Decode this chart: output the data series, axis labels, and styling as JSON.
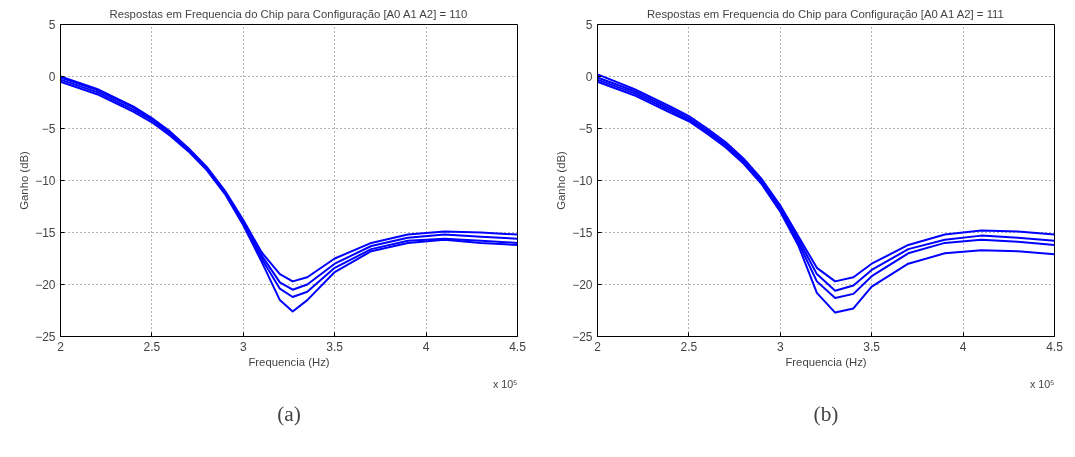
{
  "chart_data": [
    {
      "type": "line",
      "title": "Respostas em Frequencia do Chip para Configuração [A0 A1 A2] = 110",
      "xlabel": "Frequencia (Hz)",
      "ylabel": "Ganho (dB)",
      "x": [
        2.0,
        2.2,
        2.4,
        2.5,
        2.6,
        2.7,
        2.8,
        2.9,
        3.0,
        3.1,
        3.2,
        3.27,
        3.35,
        3.5,
        3.7,
        3.9,
        4.1,
        4.3,
        4.5
      ],
      "series": [
        {
          "color": "#0000ff",
          "values": [
            0,
            -1.2,
            -2.9,
            -4.0,
            -5.3,
            -6.9,
            -8.7,
            -11.0,
            -13.8,
            -16.9,
            -19.0,
            -19.7,
            -19.3,
            -17.5,
            -16.0,
            -15.2,
            -14.9,
            -15.0,
            -15.2
          ]
        },
        {
          "color": "#0000ff",
          "values": [
            -0.1,
            -1.3,
            -3.0,
            -4.1,
            -5.4,
            -7.0,
            -8.8,
            -11.1,
            -14.0,
            -17.2,
            -19.8,
            -20.5,
            -20.0,
            -18.0,
            -16.3,
            -15.5,
            -15.2,
            -15.4,
            -15.6
          ]
        },
        {
          "color": "#0000ff",
          "values": [
            -0.3,
            -1.5,
            -3.2,
            -4.2,
            -5.5,
            -7.1,
            -8.9,
            -11.2,
            -14.2,
            -17.5,
            -20.4,
            -21.2,
            -20.7,
            -18.4,
            -16.6,
            -15.8,
            -15.6,
            -15.8,
            -16.0
          ]
        },
        {
          "color": "#0000ff",
          "values": [
            -0.5,
            -1.7,
            -3.4,
            -4.4,
            -5.7,
            -7.2,
            -9.0,
            -11.3,
            -14.3,
            -17.8,
            -21.5,
            -22.6,
            -21.5,
            -18.8,
            -16.8,
            -16.0,
            -15.7,
            -16.0,
            -16.2
          ]
        }
      ],
      "xlim": [
        2,
        4.5
      ],
      "xticks": [
        2,
        2.5,
        3,
        3.5,
        4,
        4.5
      ],
      "ylim": [
        -25,
        5
      ],
      "yticks": [
        -25,
        -20,
        -15,
        -10,
        -5,
        0,
        5
      ],
      "grid": true,
      "line_style": "solid",
      "marker": "none",
      "annotations": [
        "x 10⁵",
        "(a)"
      ]
    },
    {
      "type": "line",
      "title": "Respostas em Frequencia do Chip para Configuração [A0 A1 A2] = 111",
      "xlabel": "Frequencia (Hz)",
      "ylabel": "Ganho (dB)",
      "x": [
        2.0,
        2.2,
        2.4,
        2.5,
        2.6,
        2.7,
        2.8,
        2.9,
        3.0,
        3.1,
        3.2,
        3.3,
        3.4,
        3.5,
        3.7,
        3.9,
        4.1,
        4.3,
        4.5
      ],
      "series": [
        {
          "color": "#0000ff",
          "values": [
            0.2,
            -1.2,
            -2.9,
            -3.8,
            -5.0,
            -6.3,
            -7.9,
            -9.9,
            -12.4,
            -15.4,
            -18.4,
            -19.7,
            -19.3,
            -18.0,
            -16.2,
            -15.2,
            -14.8,
            -14.9,
            -15.2
          ]
        },
        {
          "color": "#0000ff",
          "values": [
            -0.1,
            -1.4,
            -3.1,
            -4.0,
            -5.2,
            -6.5,
            -8.1,
            -10.1,
            -12.6,
            -15.7,
            -19.0,
            -20.6,
            -20.1,
            -18.6,
            -16.6,
            -15.7,
            -15.3,
            -15.5,
            -15.8
          ]
        },
        {
          "color": "#0000ff",
          "values": [
            -0.3,
            -1.6,
            -3.3,
            -4.2,
            -5.3,
            -6.6,
            -8.2,
            -10.2,
            -12.8,
            -16.0,
            -19.7,
            -21.3,
            -20.9,
            -19.2,
            -17.0,
            -16.0,
            -15.7,
            -15.9,
            -16.2
          ]
        },
        {
          "color": "#0000ff",
          "values": [
            -0.5,
            -1.8,
            -3.5,
            -4.3,
            -5.5,
            -6.8,
            -8.4,
            -10.4,
            -13.0,
            -16.3,
            -20.8,
            -22.7,
            -22.3,
            -20.2,
            -18.0,
            -17.0,
            -16.7,
            -16.8,
            -17.1
          ]
        }
      ],
      "xlim": [
        2,
        4.5
      ],
      "xticks": [
        2,
        2.5,
        3,
        3.5,
        4,
        4.5
      ],
      "ylim": [
        -25,
        5
      ],
      "yticks": [
        -25,
        -20,
        -15,
        -10,
        -5,
        0,
        5
      ],
      "grid": true,
      "line_style": "solid",
      "marker": "none",
      "annotations": [
        "x 10⁵",
        "(b)"
      ]
    }
  ]
}
